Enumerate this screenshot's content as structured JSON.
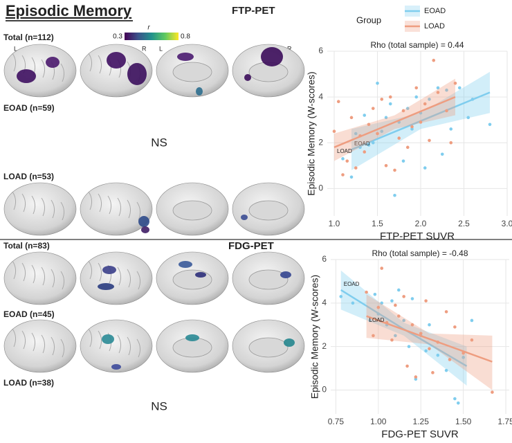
{
  "figure": {
    "title": "Episodic Memory",
    "sections": [
      "FTP-PET",
      "FDG-PET"
    ],
    "colorbar": {
      "label": "r",
      "min": 0.3,
      "max": 0.8
    },
    "hemispheres": [
      "L",
      "R",
      "L",
      "R"
    ],
    "rows": [
      "Total (n=112)",
      "EOAD (n=59)",
      "LOAD (n=53)",
      "Total (n=83)",
      "EOAD (n=45)",
      "LOAD (n=38)"
    ],
    "not_significant": [
      "NS",
      "NS"
    ]
  },
  "chart_data": [
    {
      "type": "scatter",
      "title": "Rho (total sample) = 0.44",
      "xlabel": "FTP-PET SUVR",
      "ylabel": "Episodic Memory (W-scores)",
      "legend_title": "Group",
      "xlim": [
        0.92,
        3.0
      ],
      "ylim": [
        -1.2,
        6.0
      ],
      "xticks": [
        {
          "value": 1,
          "label": "1.0"
        },
        1.5,
        {
          "value": 2,
          "label": "2.0"
        },
        2.5,
        {
          "value": 3,
          "label": "3.0"
        }
      ],
      "yticks": [
        0,
        2,
        4,
        6
      ],
      "grid": true,
      "series": [
        {
          "name": "EOAD",
          "color": "#7fcdee",
          "x": [
            1.1,
            1.2,
            1.25,
            1.3,
            1.35,
            1.4,
            1.45,
            1.5,
            1.55,
            1.6,
            1.65,
            1.7,
            1.75,
            1.8,
            1.85,
            1.9,
            1.95,
            2.0,
            2.05,
            2.1,
            2.2,
            2.25,
            2.3,
            2.35,
            2.45,
            2.55,
            2.6,
            2.8
          ],
          "values": [
            1.3,
            0.5,
            2.4,
            1.8,
            3.2,
            1.9,
            2.0,
            4.6,
            2.5,
            3.1,
            3.7,
            -0.3,
            2.9,
            1.2,
            3.5,
            2.6,
            4.0,
            3.3,
            0.9,
            3.9,
            4.4,
            1.5,
            4.3,
            2.6,
            4.4,
            3.1,
            3.9,
            2.8
          ],
          "fit": {
            "x": [
              1.2,
              2.0,
              2.8
            ],
            "values": [
              1.7,
              2.95,
              4.2
            ],
            "lower": [
              0.8,
              2.6,
              3.3
            ],
            "upper": [
              2.6,
              3.3,
              5.1
            ]
          }
        },
        {
          "name": "LOAD",
          "color": "#ee9d80",
          "x": [
            1.0,
            1.05,
            1.1,
            1.15,
            1.2,
            1.25,
            1.3,
            1.35,
            1.4,
            1.45,
            1.5,
            1.55,
            1.6,
            1.65,
            1.7,
            1.75,
            1.8,
            1.85,
            1.9,
            1.95,
            2.0,
            2.05,
            2.1,
            2.15,
            2.2,
            2.3,
            2.35,
            2.4
          ],
          "values": [
            2.5,
            3.8,
            0.6,
            1.2,
            3.1,
            0.9,
            2.3,
            1.6,
            2.8,
            3.5,
            2.4,
            3.9,
            1.0,
            4.0,
            0.8,
            2.2,
            3.4,
            1.8,
            2.7,
            4.4,
            2.9,
            3.7,
            2.1,
            5.6,
            4.2,
            3.4,
            2.0,
            4.6
          ],
          "fit": {
            "x": [
              1.0,
              1.7,
              2.4
            ],
            "values": [
              1.8,
              2.9,
              4.0
            ],
            "lower": [
              1.2,
              2.6,
              3.2
            ],
            "upper": [
              2.4,
              3.2,
              4.8
            ]
          }
        }
      ]
    },
    {
      "type": "scatter",
      "title": "Rho (total sample) = -0.48",
      "xlabel": "FDG-PET SUVR",
      "ylabel": "Episodic Memory (W-scores)",
      "xlim": [
        0.72,
        1.77
      ],
      "ylim": [
        -1.1,
        6.0
      ],
      "xticks": [
        0.75,
        {
          "value": 1,
          "label": "1.00"
        },
        1.25,
        {
          "value": 1.5,
          "label": "1.50"
        },
        1.75
      ],
      "yticks": [
        0,
        2,
        4,
        6
      ],
      "grid": true,
      "series": [
        {
          "name": "EOAD",
          "color": "#7fcdee",
          "x": [
            0.78,
            0.85,
            0.95,
            0.98,
            1.0,
            1.02,
            1.05,
            1.08,
            1.1,
            1.12,
            1.15,
            1.18,
            1.2,
            1.22,
            1.25,
            1.28,
            1.3,
            1.35,
            1.4,
            1.45,
            1.47,
            1.5,
            1.55
          ],
          "values": [
            4.3,
            4.0,
            3.2,
            4.4,
            3.5,
            4.0,
            3.0,
            4.1,
            2.5,
            4.6,
            3.2,
            2.0,
            4.2,
            0.5,
            2.5,
            1.8,
            3.0,
            1.6,
            0.9,
            -0.4,
            -0.6,
            1.5,
            3.2
          ],
          "fit": {
            "x": [
              0.78,
              1.15,
              1.52
            ],
            "values": [
              4.6,
              2.8,
              1.1
            ],
            "lower": [
              3.7,
              2.5,
              0.2
            ],
            "upper": [
              5.5,
              3.1,
              2.0
            ]
          }
        },
        {
          "name": "LOAD",
          "color": "#ee9d80",
          "x": [
            0.93,
            0.97,
            1.0,
            1.02,
            1.05,
            1.08,
            1.1,
            1.12,
            1.15,
            1.17,
            1.2,
            1.22,
            1.25,
            1.28,
            1.3,
            1.32,
            1.35,
            1.4,
            1.42,
            1.45,
            1.5,
            1.55,
            1.67
          ],
          "values": [
            4.5,
            2.5,
            3.8,
            5.6,
            3.1,
            2.3,
            3.9,
            3.4,
            4.3,
            1.1,
            3.0,
            0.6,
            2.6,
            4.1,
            1.9,
            0.8,
            2.2,
            3.6,
            1.4,
            2.9,
            1.7,
            2.3,
            -0.1
          ],
          "fit": {
            "x": [
              0.93,
              1.3,
              1.67
            ],
            "values": [
              3.4,
              2.35,
              1.3
            ],
            "lower": [
              2.4,
              2.1,
              0.0
            ],
            "upper": [
              4.4,
              2.6,
              2.5
            ]
          }
        }
      ]
    }
  ]
}
